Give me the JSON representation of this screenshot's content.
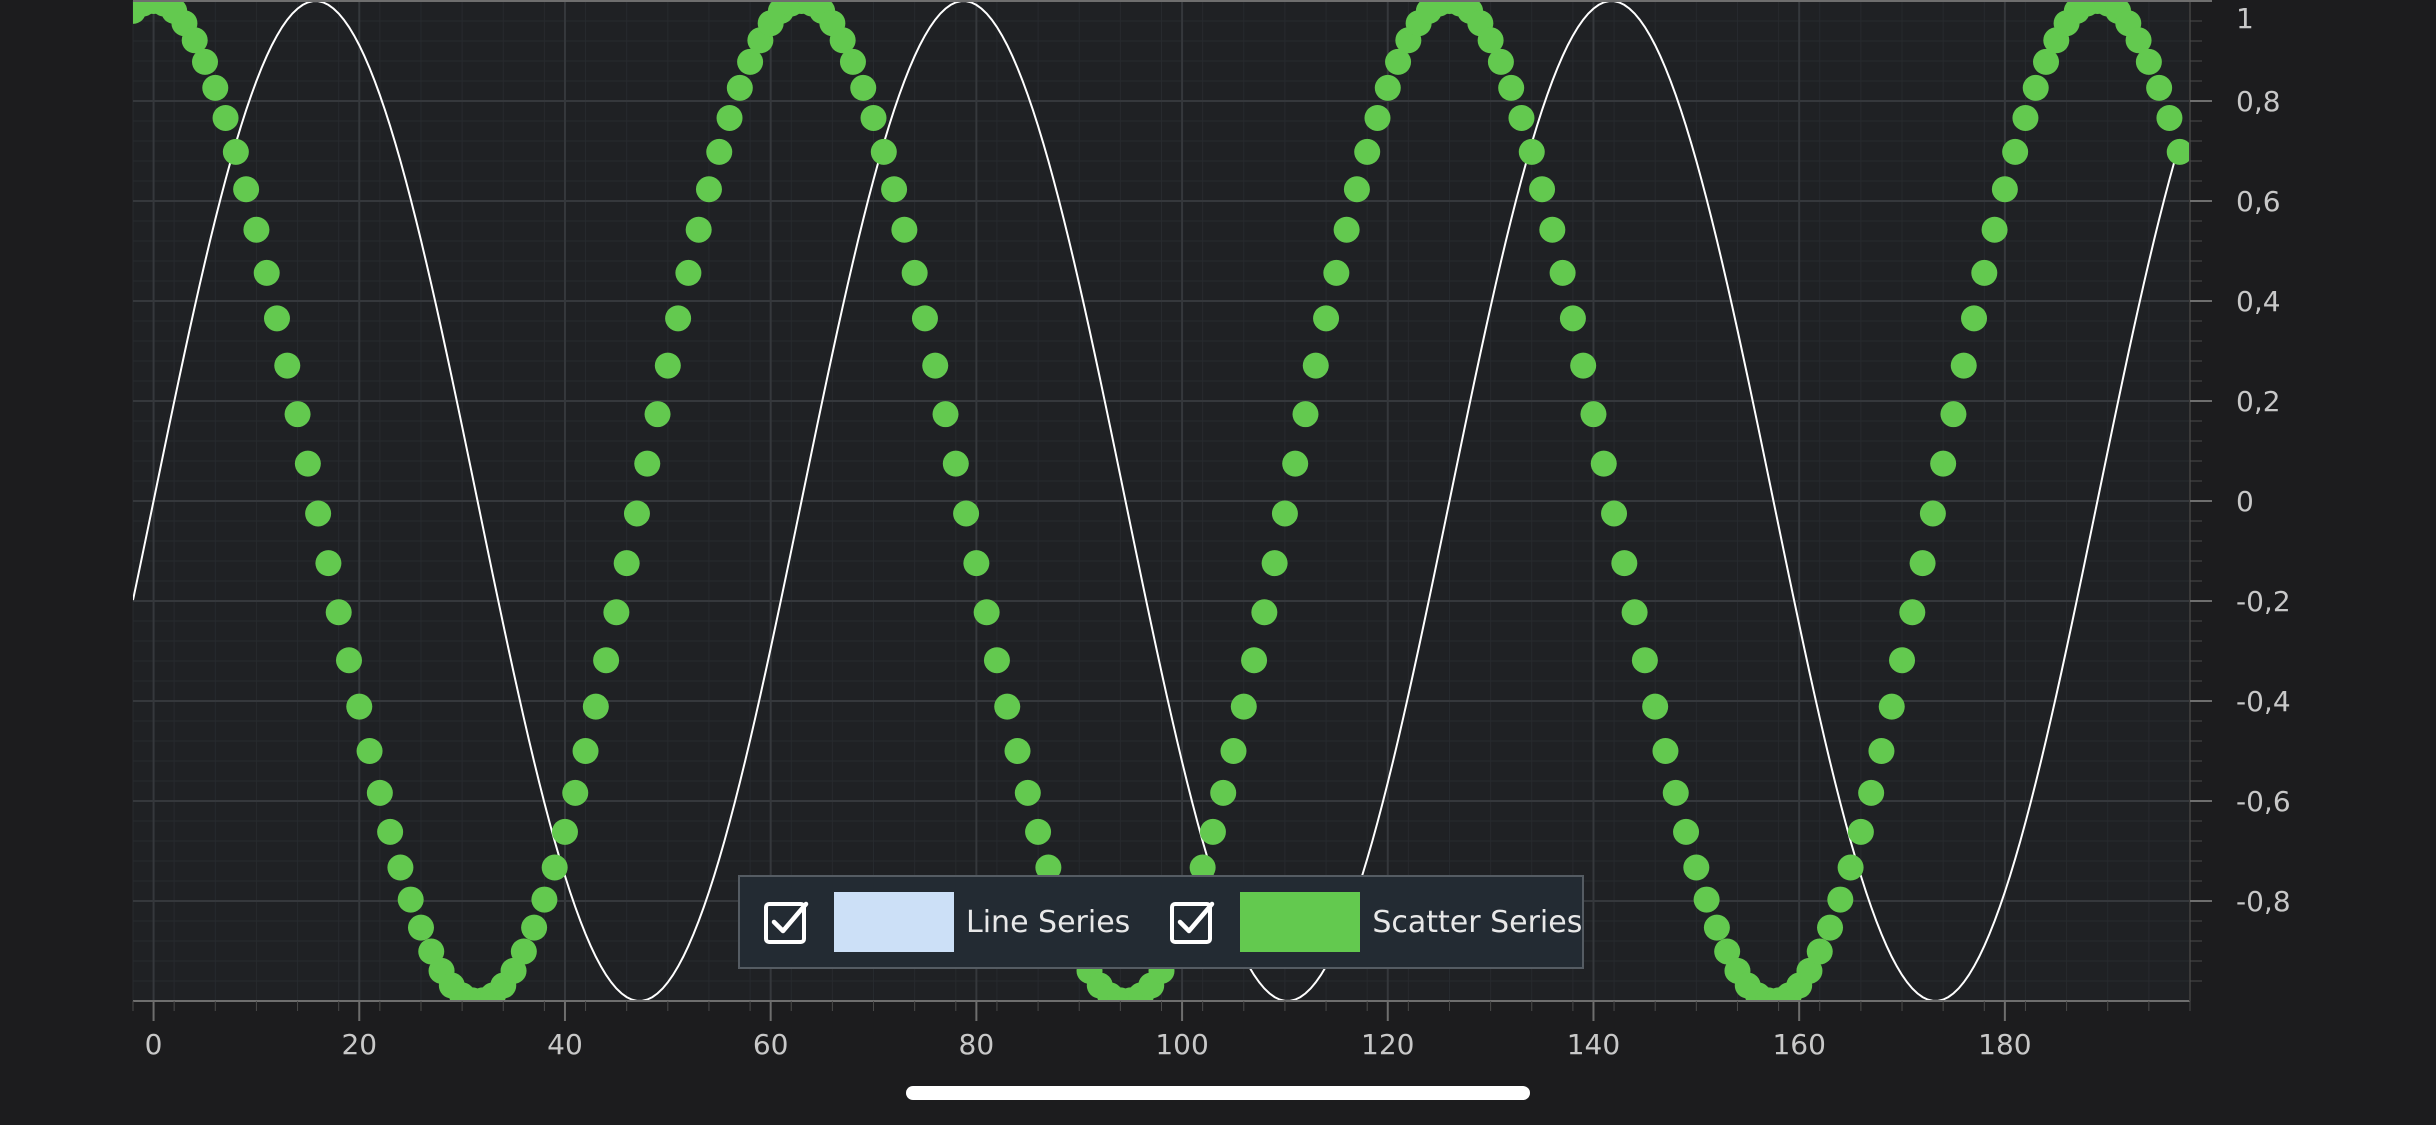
{
  "chart_data": {
    "type": "scatter",
    "x_range": [
      -2,
      198
    ],
    "y_range": [
      -1,
      1
    ],
    "x_ticks": [
      0,
      20,
      40,
      60,
      80,
      100,
      120,
      140,
      160,
      180
    ],
    "x_tick_labels": [
      "0",
      "20",
      "40",
      "60",
      "80",
      "100",
      "120",
      "140",
      "160",
      "180"
    ],
    "y_ticks": [
      1,
      0.8,
      0.6,
      0.4,
      0.2,
      0,
      -0.2,
      -0.4,
      -0.6,
      -0.8
    ],
    "y_tick_labels": [
      "1",
      "0,8",
      "0,6",
      "0,4",
      "0,2",
      "0",
      "-0,2",
      "-0,4",
      "-0,6",
      "-0,8"
    ],
    "y_axis_position": "right",
    "grid": true,
    "legend_position": "bottom-center",
    "series": [
      {
        "name": "Line Series",
        "kind": "line",
        "color": "#ffffff",
        "legend_color": "#cce0f7",
        "function": "sin(2*pi*x/63)",
        "x_start": -2,
        "x_end": 196.5,
        "step": 0.5
      },
      {
        "name": "Scatter Series",
        "kind": "scatter",
        "color": "#63c94f",
        "function": "cos(2*pi*x/63)",
        "x_start": -2,
        "x_end": 197,
        "step": 1
      }
    ]
  },
  "legend": {
    "items": [
      {
        "label": "Line Series",
        "checked": true,
        "color": "#cce0f7"
      },
      {
        "label": "Scatter Series",
        "checked": true,
        "color": "#63c94f"
      }
    ]
  }
}
